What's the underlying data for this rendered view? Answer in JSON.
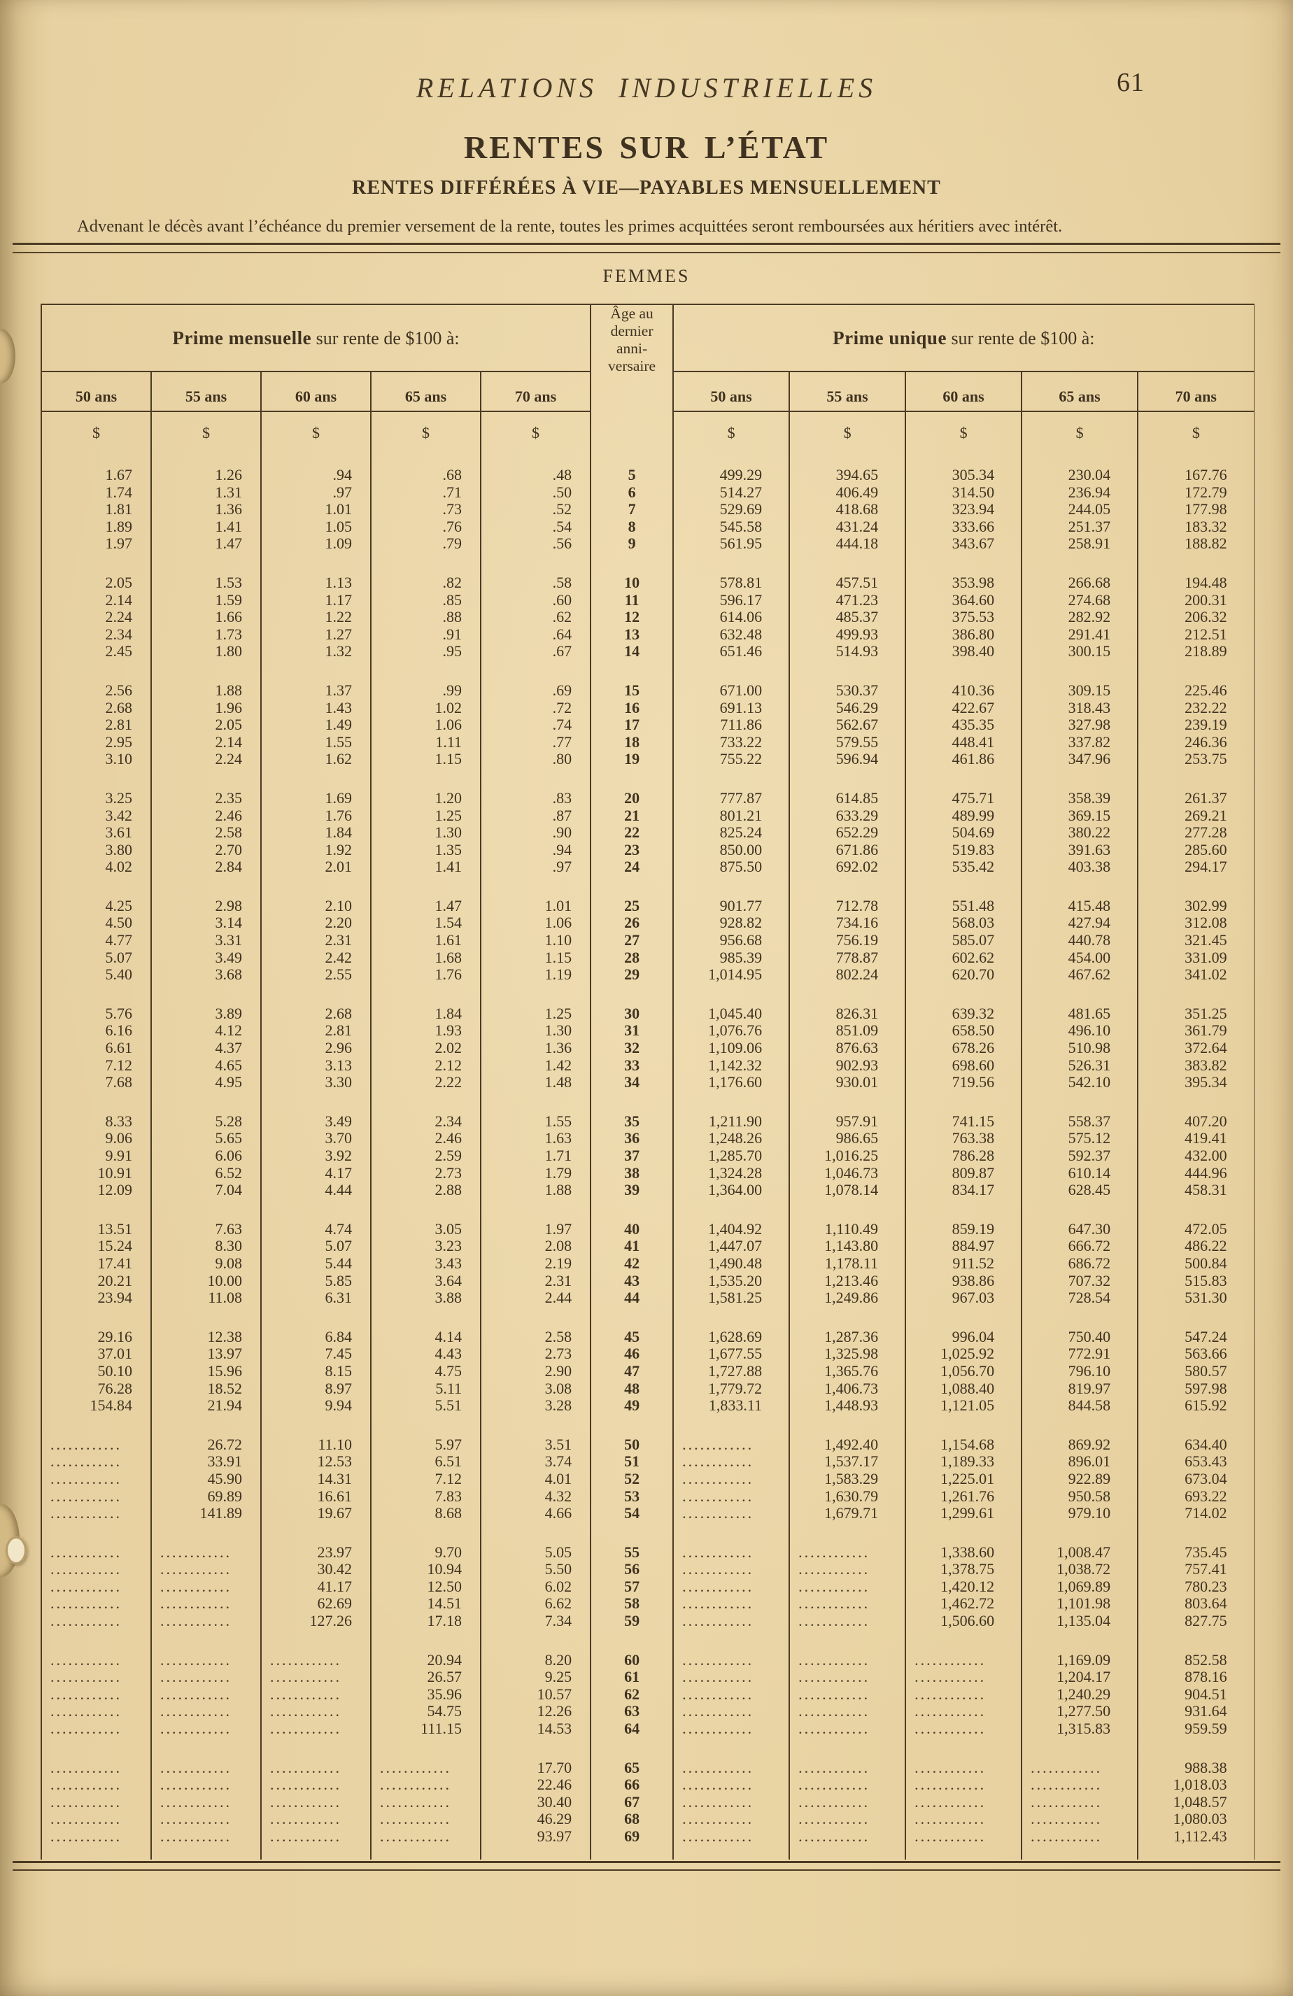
{
  "page": {
    "running_title": "RELATIONS INDUSTRIELLES",
    "page_number": "61",
    "title": "RENTES SUR L’ÉTAT",
    "subtitle": "RENTES DIFFÉRÉES À VIE—PAYABLES MENSUELLEMENT",
    "note": "Advenant le décès avant l’échéance du premier versement de la rente, toutes les primes acquittées seront remboursées aux héritiers avec intérêt.",
    "section_title": "FEMMES"
  },
  "colors": {
    "paper": "#e8d2a2",
    "ink": "#3f3220",
    "rule": "#4c3b24"
  },
  "table": {
    "left_group_bold": "Prime mensuelle",
    "left_group_rest": " sur rente de $100 à:",
    "right_group_bold": "Prime unique",
    "right_group_rest": " sur rente de $100 à:",
    "age_header_lines": [
      "Âge au",
      "dernier",
      "anni-",
      "versaire"
    ],
    "age_columns": [
      "50 ans",
      "55 ans",
      "60 ans",
      "65 ans",
      "70 ans"
    ],
    "currency_symbol": "$",
    "empty_marker": "............",
    "rows": [
      {
        "age": "5",
        "m": [
          "1.67",
          "1.26",
          ".94",
          ".68",
          ".48"
        ],
        "u": [
          "499.29",
          "394.65",
          "305.34",
          "230.04",
          "167.76"
        ]
      },
      {
        "age": "6",
        "m": [
          "1.74",
          "1.31",
          ".97",
          ".71",
          ".50"
        ],
        "u": [
          "514.27",
          "406.49",
          "314.50",
          "236.94",
          "172.79"
        ]
      },
      {
        "age": "7",
        "m": [
          "1.81",
          "1.36",
          "1.01",
          ".73",
          ".52"
        ],
        "u": [
          "529.69",
          "418.68",
          "323.94",
          "244.05",
          "177.98"
        ]
      },
      {
        "age": "8",
        "m": [
          "1.89",
          "1.41",
          "1.05",
          ".76",
          ".54"
        ],
        "u": [
          "545.58",
          "431.24",
          "333.66",
          "251.37",
          "183.32"
        ]
      },
      {
        "age": "9",
        "m": [
          "1.97",
          "1.47",
          "1.09",
          ".79",
          ".56"
        ],
        "u": [
          "561.95",
          "444.18",
          "343.67",
          "258.91",
          "188.82"
        ]
      },
      {
        "age": "10",
        "m": [
          "2.05",
          "1.53",
          "1.13",
          ".82",
          ".58"
        ],
        "u": [
          "578.81",
          "457.51",
          "353.98",
          "266.68",
          "194.48"
        ]
      },
      {
        "age": "11",
        "m": [
          "2.14",
          "1.59",
          "1.17",
          ".85",
          ".60"
        ],
        "u": [
          "596.17",
          "471.23",
          "364.60",
          "274.68",
          "200.31"
        ]
      },
      {
        "age": "12",
        "m": [
          "2.24",
          "1.66",
          "1.22",
          ".88",
          ".62"
        ],
        "u": [
          "614.06",
          "485.37",
          "375.53",
          "282.92",
          "206.32"
        ]
      },
      {
        "age": "13",
        "m": [
          "2.34",
          "1.73",
          "1.27",
          ".91",
          ".64"
        ],
        "u": [
          "632.48",
          "499.93",
          "386.80",
          "291.41",
          "212.51"
        ]
      },
      {
        "age": "14",
        "m": [
          "2.45",
          "1.80",
          "1.32",
          ".95",
          ".67"
        ],
        "u": [
          "651.46",
          "514.93",
          "398.40",
          "300.15",
          "218.89"
        ]
      },
      {
        "age": "15",
        "m": [
          "2.56",
          "1.88",
          "1.37",
          ".99",
          ".69"
        ],
        "u": [
          "671.00",
          "530.37",
          "410.36",
          "309.15",
          "225.46"
        ]
      },
      {
        "age": "16",
        "m": [
          "2.68",
          "1.96",
          "1.43",
          "1.02",
          ".72"
        ],
        "u": [
          "691.13",
          "546.29",
          "422.67",
          "318.43",
          "232.22"
        ]
      },
      {
        "age": "17",
        "m": [
          "2.81",
          "2.05",
          "1.49",
          "1.06",
          ".74"
        ],
        "u": [
          "711.86",
          "562.67",
          "435.35",
          "327.98",
          "239.19"
        ]
      },
      {
        "age": "18",
        "m": [
          "2.95",
          "2.14",
          "1.55",
          "1.11",
          ".77"
        ],
        "u": [
          "733.22",
          "579.55",
          "448.41",
          "337.82",
          "246.36"
        ]
      },
      {
        "age": "19",
        "m": [
          "3.10",
          "2.24",
          "1.62",
          "1.15",
          ".80"
        ],
        "u": [
          "755.22",
          "596.94",
          "461.86",
          "347.96",
          "253.75"
        ]
      },
      {
        "age": "20",
        "m": [
          "3.25",
          "2.35",
          "1.69",
          "1.20",
          ".83"
        ],
        "u": [
          "777.87",
          "614.85",
          "475.71",
          "358.39",
          "261.37"
        ]
      },
      {
        "age": "21",
        "m": [
          "3.42",
          "2.46",
          "1.76",
          "1.25",
          ".87"
        ],
        "u": [
          "801.21",
          "633.29",
          "489.99",
          "369.15",
          "269.21"
        ]
      },
      {
        "age": "22",
        "m": [
          "3.61",
          "2.58",
          "1.84",
          "1.30",
          ".90"
        ],
        "u": [
          "825.24",
          "652.29",
          "504.69",
          "380.22",
          "277.28"
        ]
      },
      {
        "age": "23",
        "m": [
          "3.80",
          "2.70",
          "1.92",
          "1.35",
          ".94"
        ],
        "u": [
          "850.00",
          "671.86",
          "519.83",
          "391.63",
          "285.60"
        ]
      },
      {
        "age": "24",
        "m": [
          "4.02",
          "2.84",
          "2.01",
          "1.41",
          ".97"
        ],
        "u": [
          "875.50",
          "692.02",
          "535.42",
          "403.38",
          "294.17"
        ]
      },
      {
        "age": "25",
        "m": [
          "4.25",
          "2.98",
          "2.10",
          "1.47",
          "1.01"
        ],
        "u": [
          "901.77",
          "712.78",
          "551.48",
          "415.48",
          "302.99"
        ]
      },
      {
        "age": "26",
        "m": [
          "4.50",
          "3.14",
          "2.20",
          "1.54",
          "1.06"
        ],
        "u": [
          "928.82",
          "734.16",
          "568.03",
          "427.94",
          "312.08"
        ]
      },
      {
        "age": "27",
        "m": [
          "4.77",
          "3.31",
          "2.31",
          "1.61",
          "1.10"
        ],
        "u": [
          "956.68",
          "756.19",
          "585.07",
          "440.78",
          "321.45"
        ]
      },
      {
        "age": "28",
        "m": [
          "5.07",
          "3.49",
          "2.42",
          "1.68",
          "1.15"
        ],
        "u": [
          "985.39",
          "778.87",
          "602.62",
          "454.00",
          "331.09"
        ]
      },
      {
        "age": "29",
        "m": [
          "5.40",
          "3.68",
          "2.55",
          "1.76",
          "1.19"
        ],
        "u": [
          "1,014.95",
          "802.24",
          "620.70",
          "467.62",
          "341.02"
        ]
      },
      {
        "age": "30",
        "m": [
          "5.76",
          "3.89",
          "2.68",
          "1.84",
          "1.25"
        ],
        "u": [
          "1,045.40",
          "826.31",
          "639.32",
          "481.65",
          "351.25"
        ]
      },
      {
        "age": "31",
        "m": [
          "6.16",
          "4.12",
          "2.81",
          "1.93",
          "1.30"
        ],
        "u": [
          "1,076.76",
          "851.09",
          "658.50",
          "496.10",
          "361.79"
        ]
      },
      {
        "age": "32",
        "m": [
          "6.61",
          "4.37",
          "2.96",
          "2.02",
          "1.36"
        ],
        "u": [
          "1,109.06",
          "876.63",
          "678.26",
          "510.98",
          "372.64"
        ]
      },
      {
        "age": "33",
        "m": [
          "7.12",
          "4.65",
          "3.13",
          "2.12",
          "1.42"
        ],
        "u": [
          "1,142.32",
          "902.93",
          "698.60",
          "526.31",
          "383.82"
        ]
      },
      {
        "age": "34",
        "m": [
          "7.68",
          "4.95",
          "3.30",
          "2.22",
          "1.48"
        ],
        "u": [
          "1,176.60",
          "930.01",
          "719.56",
          "542.10",
          "395.34"
        ]
      },
      {
        "age": "35",
        "m": [
          "8.33",
          "5.28",
          "3.49",
          "2.34",
          "1.55"
        ],
        "u": [
          "1,211.90",
          "957.91",
          "741.15",
          "558.37",
          "407.20"
        ]
      },
      {
        "age": "36",
        "m": [
          "9.06",
          "5.65",
          "3.70",
          "2.46",
          "1.63"
        ],
        "u": [
          "1,248.26",
          "986.65",
          "763.38",
          "575.12",
          "419.41"
        ]
      },
      {
        "age": "37",
        "m": [
          "9.91",
          "6.06",
          "3.92",
          "2.59",
          "1.71"
        ],
        "u": [
          "1,285.70",
          "1,016.25",
          "786.28",
          "592.37",
          "432.00"
        ]
      },
      {
        "age": "38",
        "m": [
          "10.91",
          "6.52",
          "4.17",
          "2.73",
          "1.79"
        ],
        "u": [
          "1,324.28",
          "1,046.73",
          "809.87",
          "610.14",
          "444.96"
        ]
      },
      {
        "age": "39",
        "m": [
          "12.09",
          "7.04",
          "4.44",
          "2.88",
          "1.88"
        ],
        "u": [
          "1,364.00",
          "1,078.14",
          "834.17",
          "628.45",
          "458.31"
        ]
      },
      {
        "age": "40",
        "m": [
          "13.51",
          "7.63",
          "4.74",
          "3.05",
          "1.97"
        ],
        "u": [
          "1,404.92",
          "1,110.49",
          "859.19",
          "647.30",
          "472.05"
        ]
      },
      {
        "age": "41",
        "m": [
          "15.24",
          "8.30",
          "5.07",
          "3.23",
          "2.08"
        ],
        "u": [
          "1,447.07",
          "1,143.80",
          "884.97",
          "666.72",
          "486.22"
        ]
      },
      {
        "age": "42",
        "m": [
          "17.41",
          "9.08",
          "5.44",
          "3.43",
          "2.19"
        ],
        "u": [
          "1,490.48",
          "1,178.11",
          "911.52",
          "686.72",
          "500.84"
        ]
      },
      {
        "age": "43",
        "m": [
          "20.21",
          "10.00",
          "5.85",
          "3.64",
          "2.31"
        ],
        "u": [
          "1,535.20",
          "1,213.46",
          "938.86",
          "707.32",
          "515.83"
        ]
      },
      {
        "age": "44",
        "m": [
          "23.94",
          "11.08",
          "6.31",
          "3.88",
          "2.44"
        ],
        "u": [
          "1,581.25",
          "1,249.86",
          "967.03",
          "728.54",
          "531.30"
        ]
      },
      {
        "age": "45",
        "m": [
          "29.16",
          "12.38",
          "6.84",
          "4.14",
          "2.58"
        ],
        "u": [
          "1,628.69",
          "1,287.36",
          "996.04",
          "750.40",
          "547.24"
        ]
      },
      {
        "age": "46",
        "m": [
          "37.01",
          "13.97",
          "7.45",
          "4.43",
          "2.73"
        ],
        "u": [
          "1,677.55",
          "1,325.98",
          "1,025.92",
          "772.91",
          "563.66"
        ]
      },
      {
        "age": "47",
        "m": [
          "50.10",
          "15.96",
          "8.15",
          "4.75",
          "2.90"
        ],
        "u": [
          "1,727.88",
          "1,365.76",
          "1,056.70",
          "796.10",
          "580.57"
        ]
      },
      {
        "age": "48",
        "m": [
          "76.28",
          "18.52",
          "8.97",
          "5.11",
          "3.08"
        ],
        "u": [
          "1,779.72",
          "1,406.73",
          "1,088.40",
          "819.97",
          "597.98"
        ]
      },
      {
        "age": "49",
        "m": [
          "154.84",
          "21.94",
          "9.94",
          "5.51",
          "3.28"
        ],
        "u": [
          "1,833.11",
          "1,448.93",
          "1,121.05",
          "844.58",
          "615.92"
        ]
      },
      {
        "age": "50",
        "m": [
          null,
          "26.72",
          "11.10",
          "5.97",
          "3.51"
        ],
        "u": [
          null,
          "1,492.40",
          "1,154.68",
          "869.92",
          "634.40"
        ]
      },
      {
        "age": "51",
        "m": [
          null,
          "33.91",
          "12.53",
          "6.51",
          "3.74"
        ],
        "u": [
          null,
          "1,537.17",
          "1,189.33",
          "896.01",
          "653.43"
        ]
      },
      {
        "age": "52",
        "m": [
          null,
          "45.90",
          "14.31",
          "7.12",
          "4.01"
        ],
        "u": [
          null,
          "1,583.29",
          "1,225.01",
          "922.89",
          "673.04"
        ]
      },
      {
        "age": "53",
        "m": [
          null,
          "69.89",
          "16.61",
          "7.83",
          "4.32"
        ],
        "u": [
          null,
          "1,630.79",
          "1,261.76",
          "950.58",
          "693.22"
        ]
      },
      {
        "age": "54",
        "m": [
          null,
          "141.89",
          "19.67",
          "8.68",
          "4.66"
        ],
        "u": [
          null,
          "1,679.71",
          "1,299.61",
          "979.10",
          "714.02"
        ]
      },
      {
        "age": "55",
        "m": [
          null,
          null,
          "23.97",
          "9.70",
          "5.05"
        ],
        "u": [
          null,
          null,
          "1,338.60",
          "1,008.47",
          "735.45"
        ]
      },
      {
        "age": "56",
        "m": [
          null,
          null,
          "30.42",
          "10.94",
          "5.50"
        ],
        "u": [
          null,
          null,
          "1,378.75",
          "1,038.72",
          "757.41"
        ]
      },
      {
        "age": "57",
        "m": [
          null,
          null,
          "41.17",
          "12.50",
          "6.02"
        ],
        "u": [
          null,
          null,
          "1,420.12",
          "1,069.89",
          "780.23"
        ]
      },
      {
        "age": "58",
        "m": [
          null,
          null,
          "62.69",
          "14.51",
          "6.62"
        ],
        "u": [
          null,
          null,
          "1,462.72",
          "1,101.98",
          "803.64"
        ]
      },
      {
        "age": "59",
        "m": [
          null,
          null,
          "127.26",
          "17.18",
          "7.34"
        ],
        "u": [
          null,
          null,
          "1,506.60",
          "1,135.04",
          "827.75"
        ]
      },
      {
        "age": "60",
        "m": [
          null,
          null,
          null,
          "20.94",
          "8.20"
        ],
        "u": [
          null,
          null,
          null,
          "1,169.09",
          "852.58"
        ]
      },
      {
        "age": "61",
        "m": [
          null,
          null,
          null,
          "26.57",
          "9.25"
        ],
        "u": [
          null,
          null,
          null,
          "1,204.17",
          "878.16"
        ]
      },
      {
        "age": "62",
        "m": [
          null,
          null,
          null,
          "35.96",
          "10.57"
        ],
        "u": [
          null,
          null,
          null,
          "1,240.29",
          "904.51"
        ]
      },
      {
        "age": "63",
        "m": [
          null,
          null,
          null,
          "54.75",
          "12.26"
        ],
        "u": [
          null,
          null,
          null,
          "1,277.50",
          "931.64"
        ]
      },
      {
        "age": "64",
        "m": [
          null,
          null,
          null,
          "111.15",
          "14.53"
        ],
        "u": [
          null,
          null,
          null,
          "1,315.83",
          "959.59"
        ]
      },
      {
        "age": "65",
        "m": [
          null,
          null,
          null,
          null,
          "17.70"
        ],
        "u": [
          null,
          null,
          null,
          null,
          "988.38"
        ]
      },
      {
        "age": "66",
        "m": [
          null,
          null,
          null,
          null,
          "22.46"
        ],
        "u": [
          null,
          null,
          null,
          null,
          "1,018.03"
        ]
      },
      {
        "age": "67",
        "m": [
          null,
          null,
          null,
          null,
          "30.40"
        ],
        "u": [
          null,
          null,
          null,
          null,
          "1,048.57"
        ]
      },
      {
        "age": "68",
        "m": [
          null,
          null,
          null,
          null,
          "46.29"
        ],
        "u": [
          null,
          null,
          null,
          null,
          "1,080.03"
        ]
      },
      {
        "age": "69",
        "m": [
          null,
          null,
          null,
          null,
          "93.97"
        ],
        "u": [
          null,
          null,
          null,
          null,
          "1,112.43"
        ]
      }
    ]
  }
}
